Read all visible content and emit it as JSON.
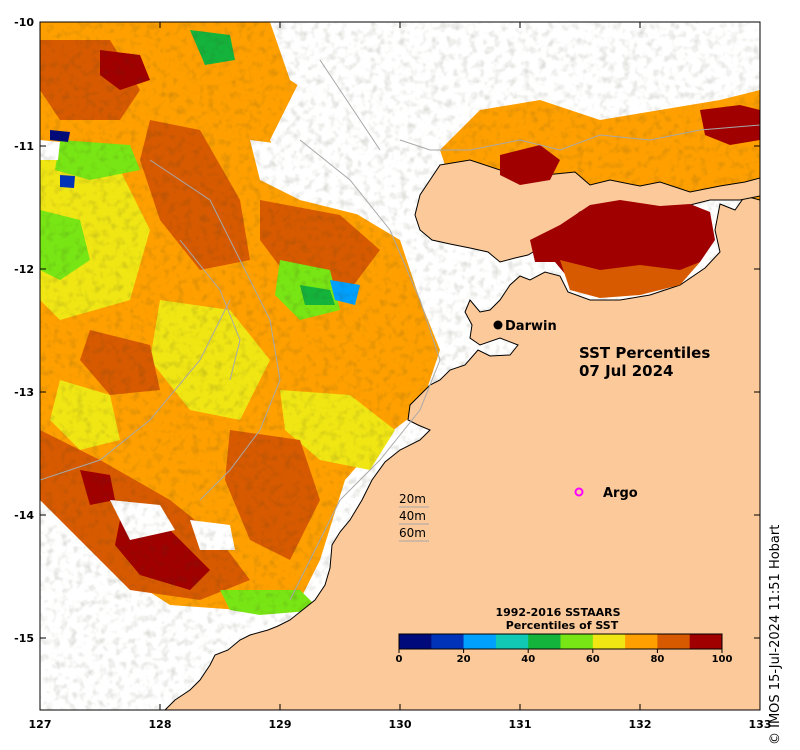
{
  "map": {
    "title_line1": "SST Percentiles",
    "title_line2": "07 Jul 2024",
    "x_ticks": [
      "127",
      "128",
      "129",
      "130",
      "131",
      "132",
      "133"
    ],
    "y_ticks": [
      "-10",
      "-11",
      "-12",
      "-13",
      "-14",
      "-15"
    ],
    "places": {
      "darwin": "Darwin",
      "argo": "Argo"
    },
    "depth_contours": [
      "20m",
      "40m",
      "60m"
    ],
    "credit": "© IMOS 15-Jul-2024 11:51 Hobart",
    "colors": {
      "land": "#fcc99a",
      "coast": "#000000",
      "isobath": "#a8a8a8",
      "no_data": "#ffffff",
      "argo_marker": "#ff00ff"
    }
  },
  "legend": {
    "title_line1": "1992-2016 SSTAARS",
    "title_line2": "Percentiles of SST",
    "ticks": [
      "0",
      "20",
      "40",
      "60",
      "80",
      "100"
    ],
    "colors": [
      "#000a7a",
      "#0033b8",
      "#00a0ff",
      "#10c8b4",
      "#14b43c",
      "#78e614",
      "#f0e614",
      "#ffa000",
      "#d75a00",
      "#a00000"
    ]
  },
  "chart_data": {
    "type": "heatmap",
    "xlim": [
      127,
      133
    ],
    "ylim": [
      -15.6,
      -10
    ],
    "x_ticks": [
      127,
      128,
      129,
      130,
      131,
      132,
      133
    ],
    "y_ticks": [
      -10,
      -11,
      -12,
      -13,
      -14,
      -15
    ],
    "colorbar_range": [
      0,
      100
    ],
    "colorbar_label": "Percentiles of SST",
    "date": "07 Jul 2024",
    "points": [
      {
        "name": "Darwin",
        "lon": 130.83,
        "lat": -12.45
      },
      {
        "name": "Argo",
        "lon": 131.5,
        "lat": -13.8
      }
    ]
  }
}
